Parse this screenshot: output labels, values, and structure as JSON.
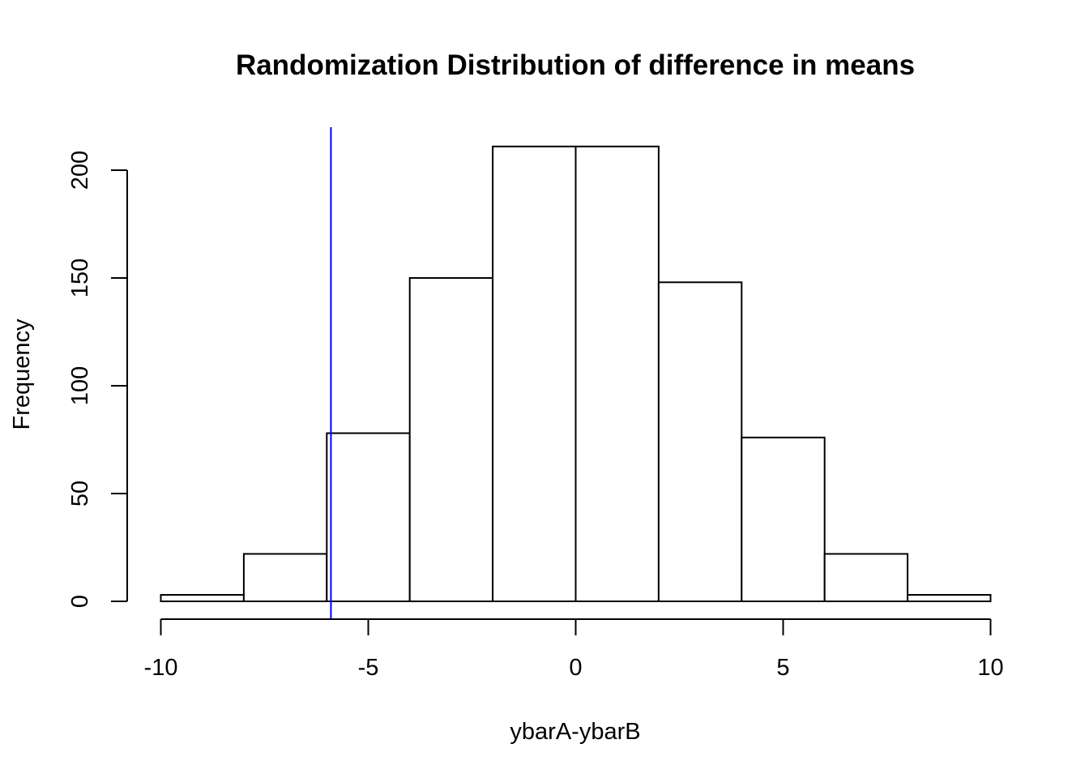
{
  "chart_data": {
    "type": "bar",
    "title": "Randomization Distribution of difference in means",
    "xlabel": "ybarA-ybarB",
    "ylabel": "Frequency",
    "xlim": [
      -10,
      10
    ],
    "ylim": [
      0,
      220
    ],
    "bins": [
      {
        "from": -10,
        "to": -8,
        "count": 3
      },
      {
        "from": -8,
        "to": -6,
        "count": 22
      },
      {
        "from": -6,
        "to": -4,
        "count": 78
      },
      {
        "from": -4,
        "to": -2,
        "count": 150
      },
      {
        "from": -2,
        "to": 0,
        "count": 211
      },
      {
        "from": 0,
        "to": 2,
        "count": 211
      },
      {
        "from": 2,
        "to": 4,
        "count": 148
      },
      {
        "from": 4,
        "to": 6,
        "count": 76
      },
      {
        "from": 6,
        "to": 8,
        "count": 22
      },
      {
        "from": 8,
        "to": 10,
        "count": 3
      }
    ],
    "x_ticks": [
      {
        "value": -10,
        "label": "-10"
      },
      {
        "value": -5,
        "label": "-5"
      },
      {
        "value": 0,
        "label": "0"
      },
      {
        "value": 5,
        "label": "5"
      },
      {
        "value": 10,
        "label": "10"
      }
    ],
    "y_ticks": [
      {
        "value": 0,
        "label": "0"
      },
      {
        "value": 50,
        "label": "50"
      },
      {
        "value": 100,
        "label": "100"
      },
      {
        "value": 150,
        "label": "150"
      },
      {
        "value": 200,
        "label": "200"
      }
    ],
    "reference_line": {
      "x": -5.9,
      "color": "#0000ff"
    },
    "bar_fill": "#ffffff",
    "bar_stroke": "#000000",
    "grid": false,
    "legend": false
  }
}
